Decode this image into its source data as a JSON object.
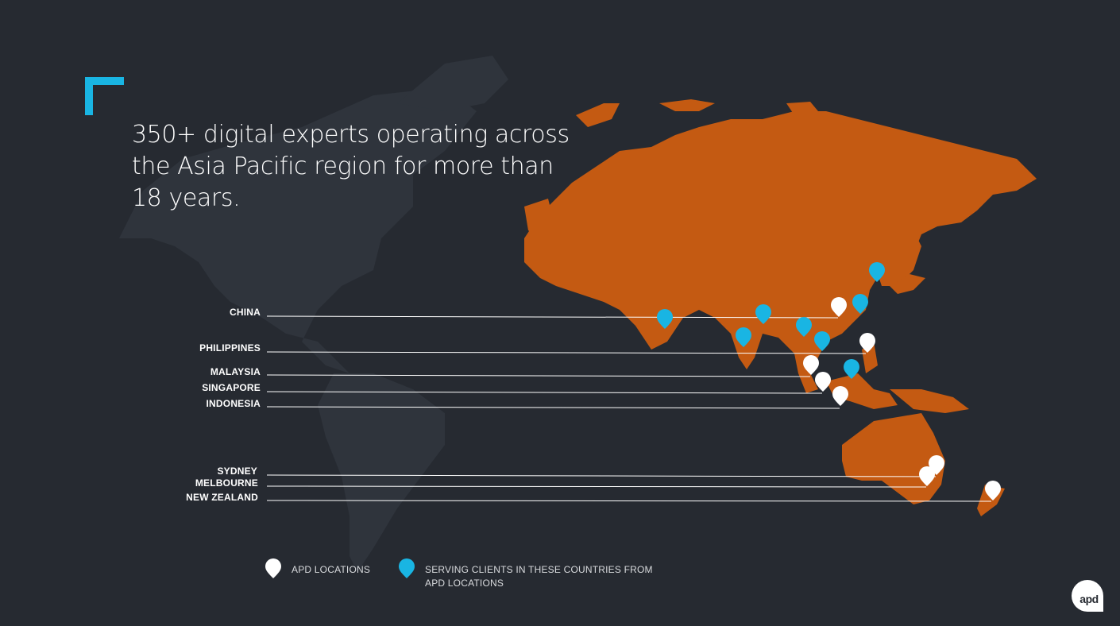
{
  "colors": {
    "background": "#262a31",
    "land_faded": "#2f343c",
    "land_highlight": "#c45a12",
    "accent_cyan": "#19b5e3",
    "marker_white": "#ffffff"
  },
  "headline": {
    "line1": "350+ digital experts operating across",
    "line2": "the Asia Pacific region for more than",
    "line3": "18 years."
  },
  "locations": [
    {
      "label": "CHINA"
    },
    {
      "label": "PHILIPPINES"
    },
    {
      "label": "MALAYSIA"
    },
    {
      "label": "SINGAPORE"
    },
    {
      "label": "INDONESIA"
    },
    {
      "label": "SYDNEY"
    },
    {
      "label": "MELBOURNE"
    },
    {
      "label": "NEW ZEALAND"
    }
  ],
  "legend": {
    "apd_locations": "APD LOCATIONS",
    "serving_clients": "SERVING CLIENTS IN THESE COUNTRIES FROM",
    "serving_clients_2": "APD LOCATIONS"
  },
  "logo": {
    "text": "apd"
  },
  "icons": {
    "marker_white": "location-pin-icon",
    "marker_cyan": "location-pin-icon"
  }
}
